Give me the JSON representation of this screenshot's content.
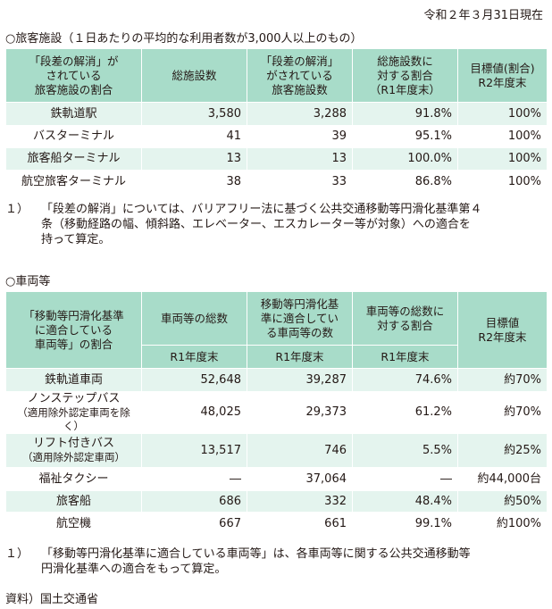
{
  "date": "令和２年３月31日現在",
  "section1": {
    "title": "○旅客施設（１日あたりの平均的な利用者数が3,000人以上のもの）",
    "headers": [
      [
        "「段差の解消」が",
        "されている",
        "旅客施設の割合"
      ],
      [
        "総施設数"
      ],
      [
        "「段差の解消」",
        "がされている",
        "旅客施設数"
      ],
      [
        "総施設数に",
        "対する割合",
        "（R1年度末）"
      ],
      [
        "目標値(割合)",
        "R2年度末"
      ]
    ],
    "rows": [
      {
        "name": "鉄軌道駅",
        "total": "3,580",
        "count": "3,288",
        "ratio": "91.8%",
        "target": "100%"
      },
      {
        "name": "バスターミナル",
        "total": "41",
        "count": "39",
        "ratio": "95.1%",
        "target": "100%"
      },
      {
        "name": "旅客船ターミナル",
        "total": "13",
        "count": "13",
        "ratio": "100.0%",
        "target": "100%"
      },
      {
        "name": "航空旅客ターミナル",
        "total": "38",
        "count": "33",
        "ratio": "86.8%",
        "target": "100%"
      }
    ],
    "note": {
      "index": "１）",
      "line1": "「段差の解消」については、バリアフリー法に基づく公共交通移動等円滑化基準第４",
      "line2": "条（移動経路の幅、傾斜路、エレベーター、エスカレーター等が対象）への適合を",
      "line3": "持って算定。"
    }
  },
  "section2": {
    "title": "○車両等",
    "headers": [
      [
        "「移動等円滑化基準",
        "に適合している",
        "車両等」の割合"
      ],
      [
        "車両等の総数"
      ],
      [
        "移動等円滑化基",
        "準に適合してい",
        "る車両等の数"
      ],
      [
        "車両等の総数に",
        "対する割合"
      ],
      [
        "目標値",
        "R2年度末"
      ]
    ],
    "subheaders": [
      "R1年度末",
      "R1年度末",
      "R1年度末"
    ],
    "rows": [
      {
        "name": "鉄軌道車両",
        "sub": "",
        "total": "52,648",
        "count": "39,287",
        "ratio": "74.6%",
        "target": "約70%"
      },
      {
        "name": "ノンステップバス",
        "sub": "（適用除外認定車両を除く）",
        "total": "48,025",
        "count": "29,373",
        "ratio": "61.2%",
        "target": "約70%"
      },
      {
        "name": "リフト付きバス",
        "sub": "（適用除外認定車両）",
        "total": "13,517",
        "count": "746",
        "ratio": "5.5%",
        "target": "約25%"
      },
      {
        "name": "福祉タクシー",
        "sub": "",
        "total": "―",
        "count": "37,064",
        "ratio": "―",
        "target": "約44,000台"
      },
      {
        "name": "旅客船",
        "sub": "",
        "total": "686",
        "count": "332",
        "ratio": "48.4%",
        "target": "約50%"
      },
      {
        "name": "航空機",
        "sub": "",
        "total": "667",
        "count": "661",
        "ratio": "99.1%",
        "target": "約100%"
      }
    ],
    "note": {
      "index": "１）",
      "line1": "「移動等円滑化基準に適合している車両等」は、各車両等に関する公共交通移動等",
      "line2": "円滑化基準への適合をもって算定。"
    }
  },
  "source": "資料）国土交通省"
}
